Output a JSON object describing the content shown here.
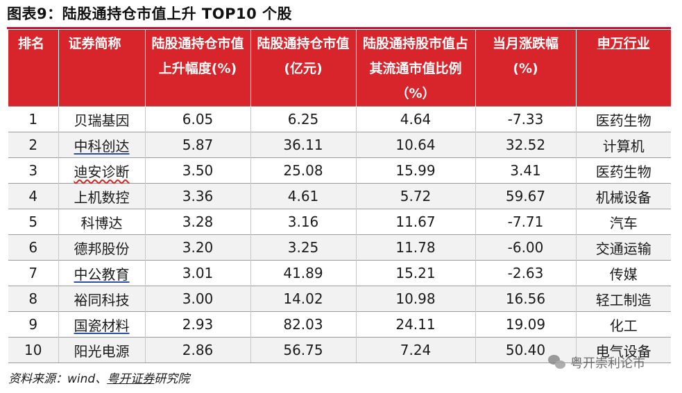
{
  "title": "图表9：陆股通持仓市值上升 TOP10 个股",
  "headers": [
    "排名",
    "证券简称",
    "陆股通持仓市值上升幅度(%)",
    "陆股通持仓市值(亿元)",
    "陆股通持股市值占其流通市值比例（%）",
    "当月涨跌幅(%)",
    "申万行业"
  ],
  "rows": [
    {
      "rank": "1",
      "name": "贝瑞基因",
      "rise": "6.05",
      "value": "6.25",
      "ratio": "4.64",
      "change": "-7.33",
      "industry": "医药生物"
    },
    {
      "rank": "2",
      "name": "中科创达",
      "rise": "5.87",
      "value": "36.11",
      "ratio": "10.64",
      "change": "32.52",
      "industry": "计算机"
    },
    {
      "rank": "3",
      "name": "迪安诊断",
      "rise": "3.50",
      "value": "25.08",
      "ratio": "15.99",
      "change": "3.41",
      "industry": "医药生物"
    },
    {
      "rank": "4",
      "name": "上机数控",
      "rise": "3.36",
      "value": "4.61",
      "ratio": "5.72",
      "change": "59.67",
      "industry": "机械设备"
    },
    {
      "rank": "5",
      "name": "科博达",
      "rise": "3.28",
      "value": "3.16",
      "ratio": "11.67",
      "change": "-7.71",
      "industry": "汽车"
    },
    {
      "rank": "6",
      "name": "德邦股份",
      "rise": "3.20",
      "value": "3.25",
      "ratio": "11.78",
      "change": "-6.00",
      "industry": "交通运输"
    },
    {
      "rank": "7",
      "name": "中公教育",
      "rise": "3.01",
      "value": "41.89",
      "ratio": "15.21",
      "change": "-2.63",
      "industry": "传媒"
    },
    {
      "rank": "8",
      "name": "裕同科技",
      "rise": "3.00",
      "value": "14.02",
      "ratio": "10.98",
      "change": "16.56",
      "industry": "轻工制造"
    },
    {
      "rank": "9",
      "name": "国瓷材料",
      "rise": "2.93",
      "value": "82.03",
      "ratio": "24.11",
      "change": "19.09",
      "industry": "化工"
    },
    {
      "rank": "10",
      "name": "阳光电源",
      "rise": "2.86",
      "value": "56.75",
      "ratio": "7.24",
      "change": "50.40",
      "industry": "电气设备"
    }
  ],
  "source_prefix": "资料来源：wind、",
  "source_link": "粤开证券",
  "source_suffix": "研究院",
  "watermark": "粤开崇利论市",
  "colors": {
    "header_bg": "#d8242b",
    "title_rule": "#c8102e",
    "stripe": "#f2f2f2"
  }
}
